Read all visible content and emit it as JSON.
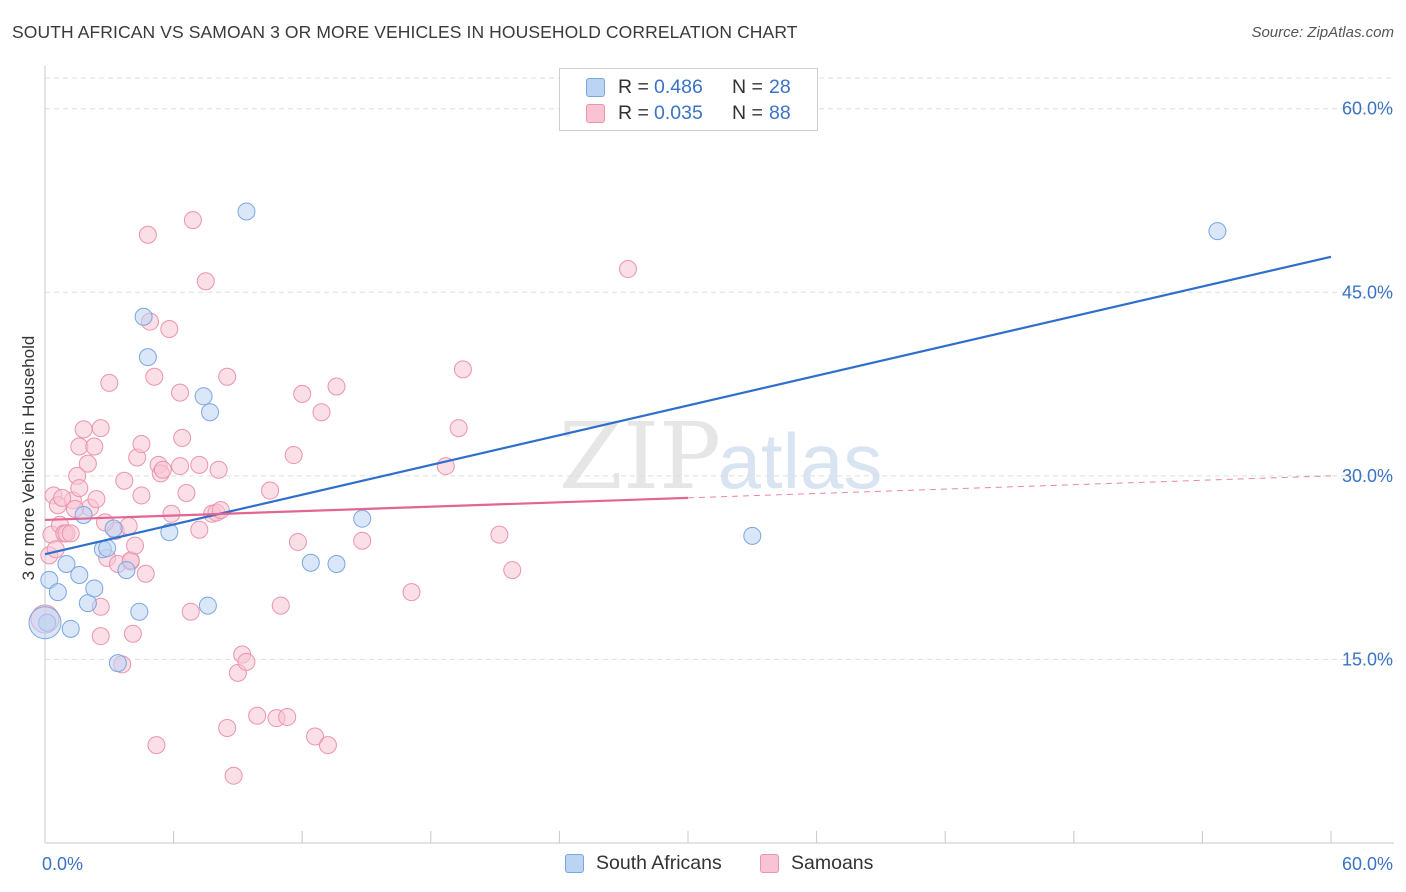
{
  "title": "SOUTH AFRICAN VS SAMOAN 3 OR MORE VEHICLES IN HOUSEHOLD CORRELATION CHART",
  "source": "Source: ZipAtlas.com",
  "watermark": {
    "zip": "ZIP",
    "atlas": "atlas"
  },
  "legend_top": {
    "rows": [
      {
        "r_label": "R =",
        "r_value": "0.486",
        "n_label": "N =",
        "n_value": "28"
      },
      {
        "r_label": "R =",
        "r_value": "0.035",
        "n_label": "N =",
        "n_value": "88"
      }
    ]
  },
  "legend_bottom": {
    "items": [
      "South Africans",
      "Samoans"
    ]
  },
  "colors": {
    "blue_fill": "#bcd4f4",
    "blue_stroke": "#7aa6e0",
    "blue_line": "#2f6fcc",
    "pink_fill": "#f8c4d3",
    "pink_stroke": "#ec93ae",
    "pink_line": "#e36592",
    "tick_label": "#3a73c4",
    "grid": "#dedede",
    "axis": "#c8c8c8"
  },
  "chart_data": {
    "type": "scatter",
    "title": "SOUTH AFRICAN VS SAMOAN 3 OR MORE VEHICLES IN HOUSEHOLD CORRELATION CHART",
    "xlabel": "",
    "ylabel": "3 or more Vehicles in Household",
    "xlim": [
      0,
      60
    ],
    "ylim": [
      0,
      63
    ],
    "x_tick_labels": [
      "0.0%",
      "60.0%"
    ],
    "y_ticks": [
      15,
      30,
      45,
      60
    ],
    "y_tick_labels": [
      "15.0%",
      "30.0%",
      "45.0%",
      "60.0%"
    ],
    "grid": true,
    "legend_position": "top-center",
    "series": [
      {
        "name": "South Africans",
        "r": 0.486,
        "n": 28,
        "points": [
          [
            0.1,
            18.0
          ],
          [
            0.2,
            21.5
          ],
          [
            0.6,
            20.5
          ],
          [
            1.0,
            22.8
          ],
          [
            1.2,
            17.5
          ],
          [
            1.6,
            21.9
          ],
          [
            1.8,
            26.8
          ],
          [
            2.0,
            19.6
          ],
          [
            2.3,
            20.8
          ],
          [
            2.7,
            24.0
          ],
          [
            2.9,
            24.1
          ],
          [
            3.2,
            25.7
          ],
          [
            3.4,
            14.7
          ],
          [
            3.8,
            22.3
          ],
          [
            4.4,
            18.9
          ],
          [
            4.6,
            43.0
          ],
          [
            4.8,
            39.7
          ],
          [
            5.8,
            25.4
          ],
          [
            7.4,
            36.5
          ],
          [
            7.6,
            19.4
          ],
          [
            7.7,
            35.2
          ],
          [
            9.4,
            51.6
          ],
          [
            12.4,
            22.9
          ],
          [
            13.6,
            22.8
          ],
          [
            14.8,
            26.5
          ],
          [
            33.0,
            25.1
          ],
          [
            54.7,
            50.0
          ],
          [
            0.0,
            18.0
          ]
        ],
        "trend": {
          "x0": 0,
          "y0": 23.6,
          "x1": 60,
          "y1": 47.9
        }
      },
      {
        "name": "Samoans",
        "r": 0.035,
        "n": 88,
        "points": [
          [
            0.2,
            23.5
          ],
          [
            0.3,
            25.2
          ],
          [
            0.4,
            28.4
          ],
          [
            0.6,
            27.6
          ],
          [
            0.7,
            26.0
          ],
          [
            0.9,
            25.3
          ],
          [
            1.0,
            25.3
          ],
          [
            1.2,
            25.3
          ],
          [
            1.3,
            28.0
          ],
          [
            1.5,
            30.0
          ],
          [
            1.6,
            29.0
          ],
          [
            1.8,
            33.8
          ],
          [
            1.6,
            32.4
          ],
          [
            2.0,
            31.0
          ],
          [
            2.1,
            27.4
          ],
          [
            2.3,
            32.4
          ],
          [
            2.4,
            28.1
          ],
          [
            2.6,
            33.9
          ],
          [
            2.6,
            19.3
          ],
          [
            2.6,
            16.9
          ],
          [
            2.9,
            23.3
          ],
          [
            3.0,
            37.6
          ],
          [
            3.3,
            25.5
          ],
          [
            3.4,
            22.8
          ],
          [
            3.6,
            14.6
          ],
          [
            3.7,
            29.6
          ],
          [
            3.9,
            25.9
          ],
          [
            4.0,
            23.0
          ],
          [
            4.0,
            23.1
          ],
          [
            4.2,
            24.3
          ],
          [
            4.1,
            17.1
          ],
          [
            4.3,
            31.5
          ],
          [
            4.5,
            32.6
          ],
          [
            4.5,
            28.4
          ],
          [
            4.7,
            22.0
          ],
          [
            4.8,
            49.7
          ],
          [
            4.9,
            42.6
          ],
          [
            5.1,
            38.1
          ],
          [
            5.2,
            8.0
          ],
          [
            5.3,
            30.9
          ],
          [
            5.4,
            30.2
          ],
          [
            5.5,
            30.5
          ],
          [
            5.8,
            42.0
          ],
          [
            5.9,
            26.9
          ],
          [
            6.3,
            30.8
          ],
          [
            6.3,
            36.8
          ],
          [
            6.4,
            33.1
          ],
          [
            6.6,
            28.6
          ],
          [
            6.8,
            18.9
          ],
          [
            6.9,
            50.9
          ],
          [
            7.2,
            25.6
          ],
          [
            7.2,
            30.9
          ],
          [
            7.5,
            45.9
          ],
          [
            7.8,
            26.9
          ],
          [
            8.0,
            27.0
          ],
          [
            8.1,
            30.5
          ],
          [
            8.2,
            27.2
          ],
          [
            8.5,
            38.1
          ],
          [
            8.5,
            9.4
          ],
          [
            8.8,
            5.5
          ],
          [
            9.0,
            13.9
          ],
          [
            9.2,
            15.4
          ],
          [
            9.4,
            14.8
          ],
          [
            9.9,
            10.4
          ],
          [
            10.5,
            28.8
          ],
          [
            10.8,
            10.2
          ],
          [
            11.0,
            19.4
          ],
          [
            11.3,
            10.3
          ],
          [
            11.6,
            31.7
          ],
          [
            11.8,
            24.6
          ],
          [
            12.0,
            36.7
          ],
          [
            12.6,
            8.7
          ],
          [
            12.9,
            35.2
          ],
          [
            13.2,
            8.0
          ],
          [
            13.6,
            37.3
          ],
          [
            14.8,
            24.7
          ],
          [
            17.1,
            20.5
          ],
          [
            18.7,
            30.8
          ],
          [
            19.3,
            33.9
          ],
          [
            19.5,
            38.7
          ],
          [
            21.2,
            25.2
          ],
          [
            21.8,
            22.3
          ],
          [
            27.2,
            46.9
          ],
          [
            1.4,
            27.3
          ],
          [
            0.8,
            28.2
          ],
          [
            0.5,
            24.0
          ],
          [
            0.0,
            18.3
          ],
          [
            2.8,
            26.2
          ]
        ],
        "trend": {
          "x0": 0,
          "y0": 26.4,
          "x1": 60,
          "y1": 30.0,
          "solid_until_x": 30
        }
      }
    ]
  }
}
